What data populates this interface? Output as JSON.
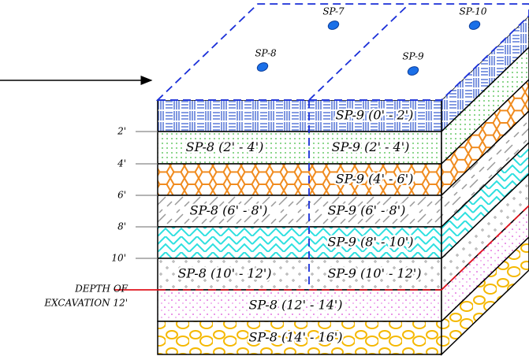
{
  "boreholes": [
    "SP-7",
    "SP-10",
    "SP-8",
    "SP-9"
  ],
  "depth_ticks": [
    "2'",
    "4'",
    "6'",
    "8'",
    "10'"
  ],
  "excavation": {
    "line1": "DEPTH OF",
    "line2": "EXCAVATION 12'"
  },
  "layers": [
    [
      "SP-9 (0' - 2')"
    ],
    [
      "SP-8 (2' - 4')",
      "SP-9 (2' - 4')"
    ],
    [
      "SP-9 (4' - 6')"
    ],
    [
      "SP-8 (6' - 8')",
      "SP-9 (6' - 8')"
    ],
    [
      "SP-9 (8' - 10')"
    ],
    [
      "SP-8 (10' - 12')",
      "SP-9 (10' - 12')"
    ],
    [
      "SP-8 (12' - 14')"
    ],
    [
      "SP-8 (14' - 16')"
    ]
  ]
}
